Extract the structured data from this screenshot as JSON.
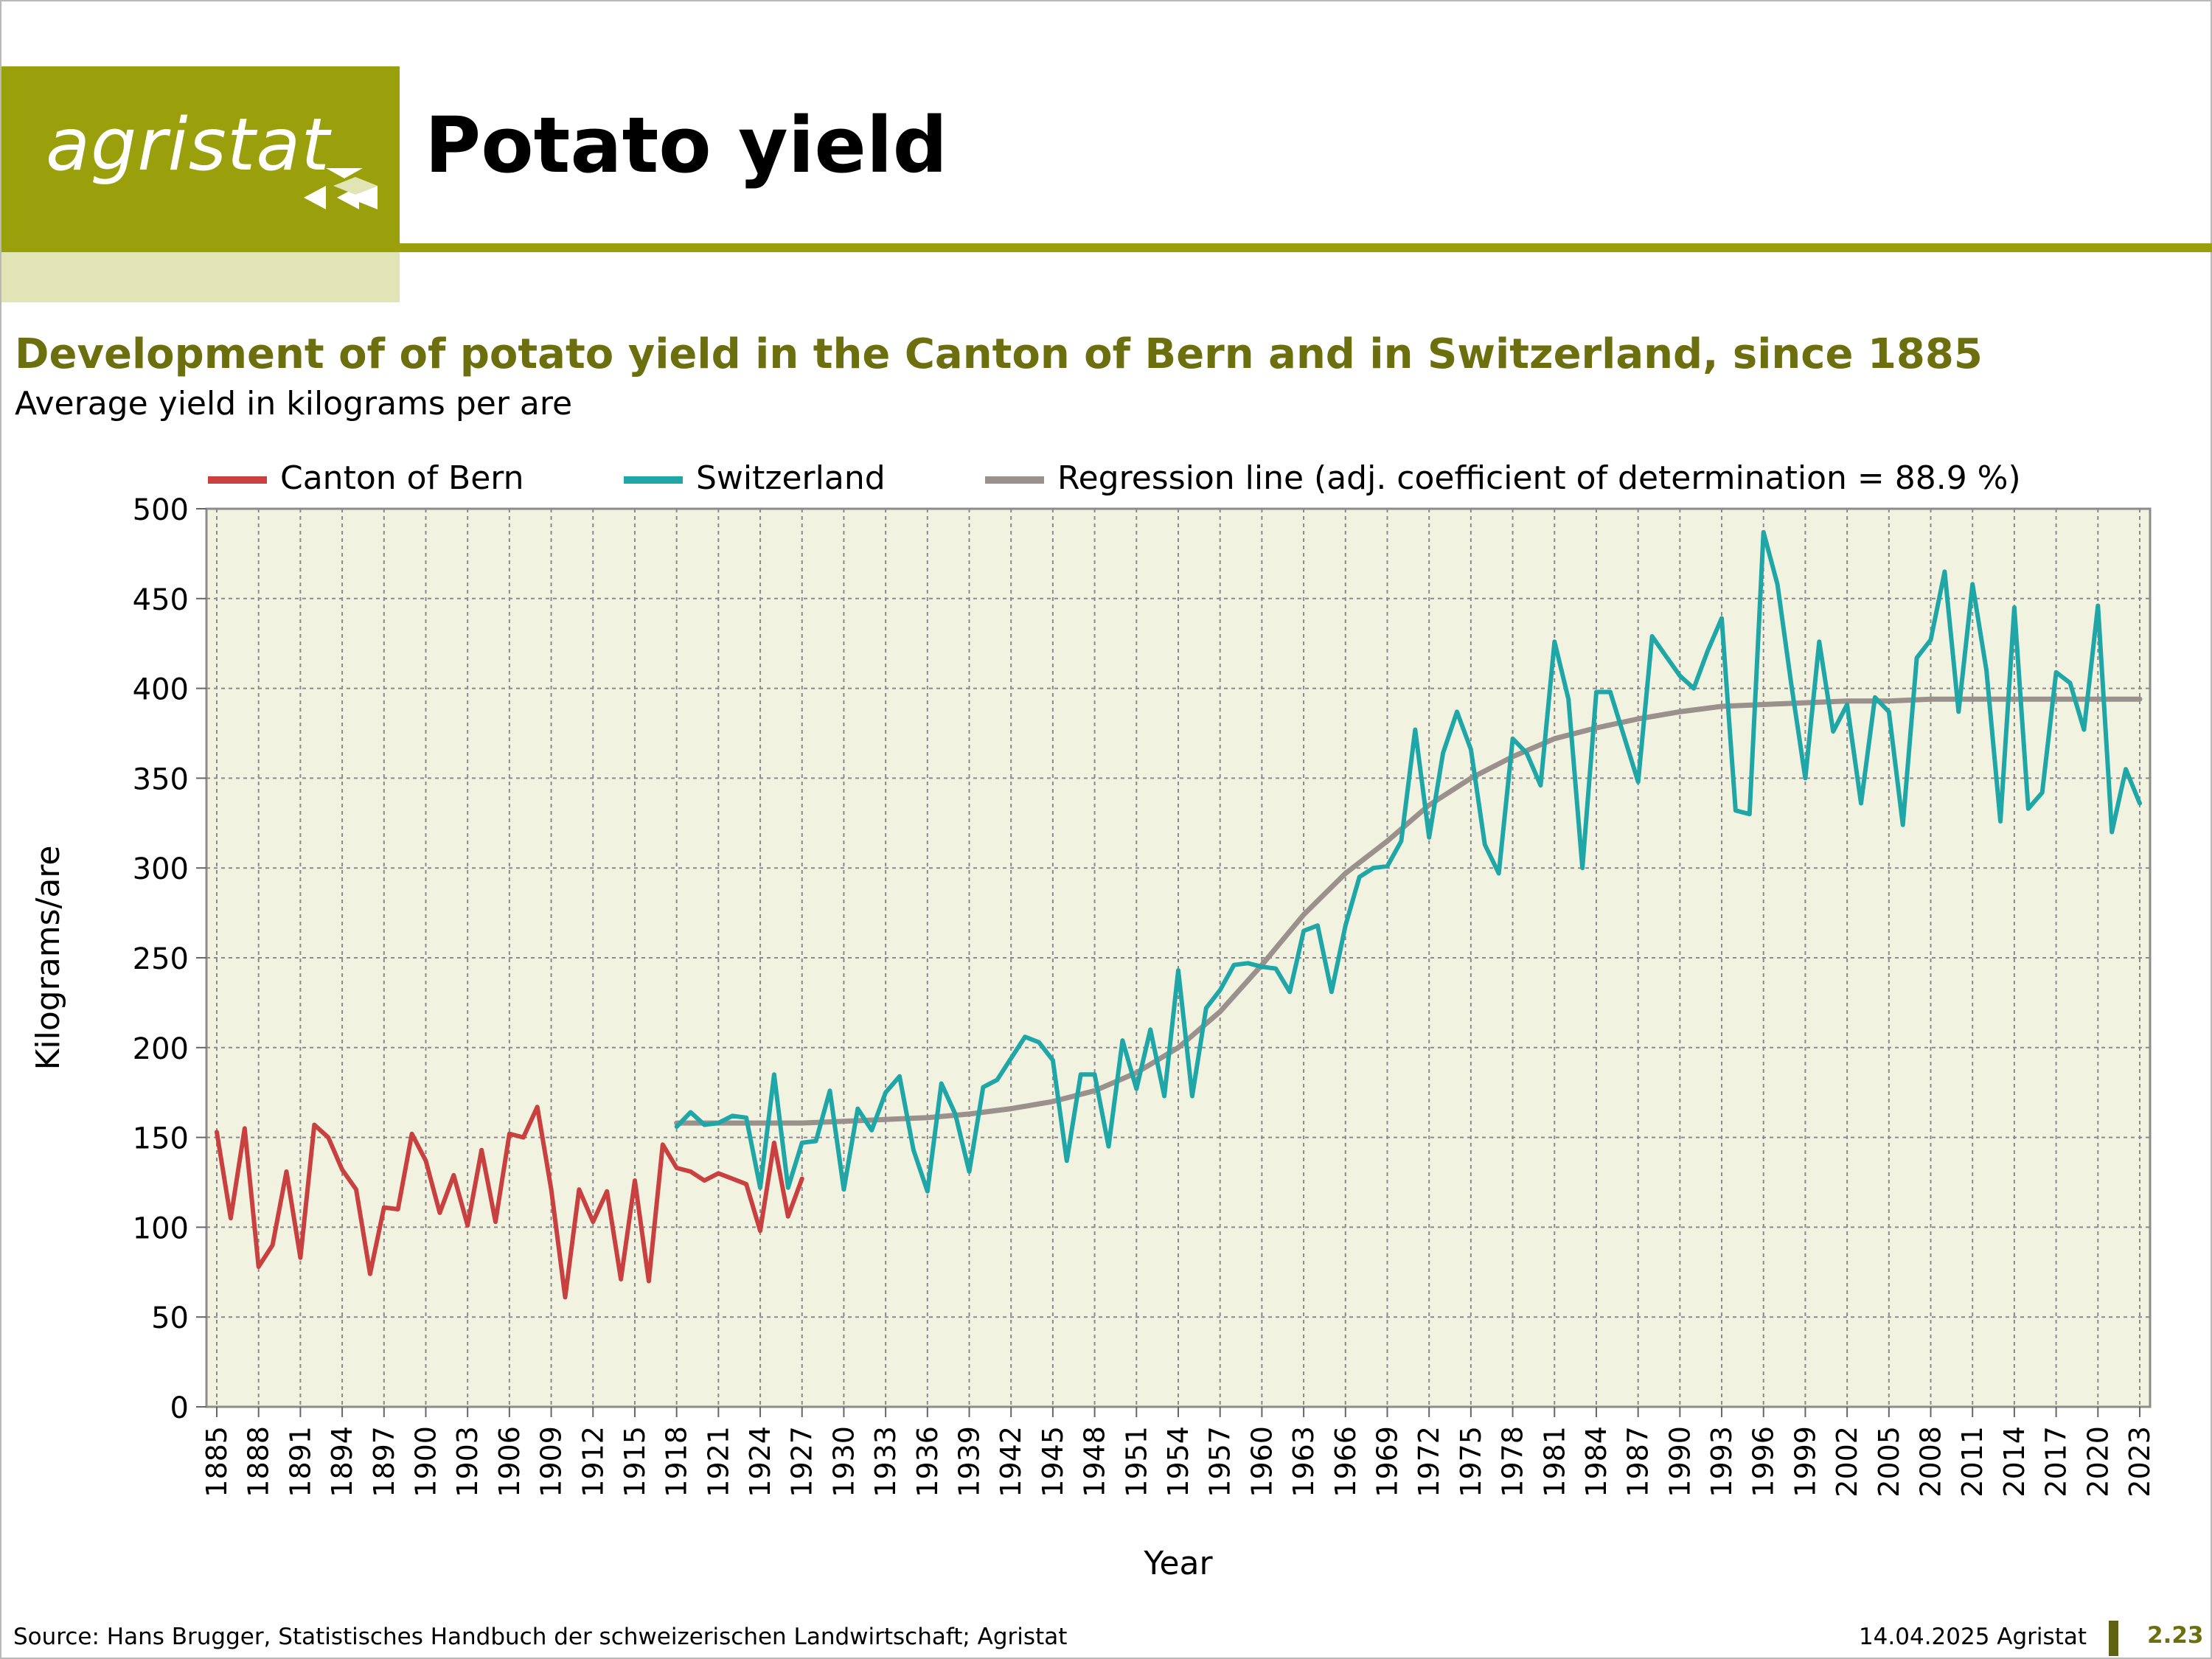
{
  "header": {
    "logo_text": "agristat",
    "title": "Potato yield"
  },
  "chart_data": {
    "type": "line",
    "title": "Development of of potato yield in the Canton of Bern and in Switzerland, since 1885",
    "subtitle": "Average yield in kilograms per are",
    "xlabel": "Year",
    "ylabel": "Kilograms/are",
    "ylim": [
      0,
      500
    ],
    "yticks": [
      0,
      50,
      100,
      150,
      200,
      250,
      300,
      350,
      400,
      450,
      500
    ],
    "xlim": [
      1885,
      2023
    ],
    "xticks": [
      1885,
      1888,
      1891,
      1894,
      1897,
      1900,
      1903,
      1906,
      1909,
      1912,
      1915,
      1918,
      1921,
      1924,
      1927,
      1930,
      1933,
      1936,
      1939,
      1942,
      1945,
      1948,
      1951,
      1954,
      1957,
      1960,
      1963,
      1966,
      1969,
      1972,
      1975,
      1978,
      1981,
      1984,
      1987,
      1990,
      1993,
      1996,
      1999,
      2002,
      2005,
      2008,
      2011,
      2014,
      2017,
      2020,
      2023
    ],
    "grid": true,
    "legend_position": "top",
    "series": [
      {
        "name": "Canton of Bern",
        "color": "#c8403f",
        "points": [
          [
            1885,
            153
          ],
          [
            1886,
            105
          ],
          [
            1887,
            155
          ],
          [
            1888,
            78
          ],
          [
            1889,
            90
          ],
          [
            1890,
            131
          ],
          [
            1891,
            83
          ],
          [
            1892,
            157
          ],
          [
            1893,
            150
          ],
          [
            1894,
            132
          ],
          [
            1895,
            121
          ],
          [
            1896,
            74
          ],
          [
            1897,
            111
          ],
          [
            1898,
            110
          ],
          [
            1899,
            152
          ],
          [
            1900,
            137
          ],
          [
            1901,
            108
          ],
          [
            1902,
            129
          ],
          [
            1903,
            101
          ],
          [
            1904,
            143
          ],
          [
            1905,
            103
          ],
          [
            1906,
            152
          ],
          [
            1907,
            150
          ],
          [
            1908,
            167
          ],
          [
            1909,
            121
          ],
          [
            1910,
            61
          ],
          [
            1911,
            121
          ],
          [
            1912,
            103
          ],
          [
            1913,
            120
          ],
          [
            1914,
            71
          ],
          [
            1915,
            126
          ],
          [
            1916,
            70
          ],
          [
            1917,
            146
          ],
          [
            1918,
            133
          ],
          [
            1919,
            131
          ],
          [
            1920,
            126
          ],
          [
            1921,
            130
          ],
          [
            1922,
            127
          ],
          [
            1923,
            124
          ],
          [
            1924,
            98
          ],
          [
            1925,
            147
          ],
          [
            1926,
            106
          ],
          [
            1927,
            127
          ]
        ]
      },
      {
        "name": "Switzerland",
        "color": "#1fa6a6",
        "points": [
          [
            1918,
            156
          ],
          [
            1919,
            164
          ],
          [
            1920,
            157
          ],
          [
            1921,
            158
          ],
          [
            1922,
            162
          ],
          [
            1923,
            161
          ],
          [
            1924,
            122
          ],
          [
            1925,
            185
          ],
          [
            1926,
            122
          ],
          [
            1927,
            147
          ],
          [
            1928,
            148
          ],
          [
            1929,
            176
          ],
          [
            1930,
            121
          ],
          [
            1931,
            166
          ],
          [
            1932,
            154
          ],
          [
            1933,
            175
          ],
          [
            1934,
            184
          ],
          [
            1935,
            143
          ],
          [
            1936,
            120
          ],
          [
            1937,
            180
          ],
          [
            1938,
            163
          ],
          [
            1939,
            131
          ],
          [
            1940,
            178
          ],
          [
            1941,
            182
          ],
          [
            1942,
            194
          ],
          [
            1943,
            206
          ],
          [
            1944,
            203
          ],
          [
            1945,
            193
          ],
          [
            1946,
            137
          ],
          [
            1947,
            185
          ],
          [
            1948,
            185
          ],
          [
            1949,
            145
          ],
          [
            1950,
            204
          ],
          [
            1951,
            177
          ],
          [
            1952,
            210
          ],
          [
            1953,
            173
          ],
          [
            1954,
            243
          ],
          [
            1955,
            173
          ],
          [
            1956,
            222
          ],
          [
            1957,
            232
          ],
          [
            1958,
            246
          ],
          [
            1959,
            247
          ],
          [
            1960,
            245
          ],
          [
            1961,
            244
          ],
          [
            1962,
            231
          ],
          [
            1963,
            265
          ],
          [
            1964,
            268
          ],
          [
            1965,
            231
          ],
          [
            1966,
            268
          ],
          [
            1967,
            295
          ],
          [
            1968,
            300
          ],
          [
            1969,
            301
          ],
          [
            1970,
            315
          ],
          [
            1971,
            377
          ],
          [
            1972,
            317
          ],
          [
            1973,
            364
          ],
          [
            1974,
            387
          ],
          [
            1975,
            366
          ],
          [
            1976,
            313
          ],
          [
            1977,
            297
          ],
          [
            1978,
            372
          ],
          [
            1979,
            364
          ],
          [
            1980,
            346
          ],
          [
            1981,
            426
          ],
          [
            1982,
            394
          ],
          [
            1983,
            300
          ],
          [
            1984,
            398
          ],
          [
            1985,
            398
          ],
          [
            1986,
            373
          ],
          [
            1987,
            348
          ],
          [
            1988,
            429
          ],
          [
            1989,
            418
          ],
          [
            1990,
            407
          ],
          [
            1991,
            400
          ],
          [
            1992,
            421
          ],
          [
            1993,
            439
          ],
          [
            1994,
            332
          ],
          [
            1995,
            330
          ],
          [
            1996,
            487
          ],
          [
            1997,
            458
          ],
          [
            1998,
            402
          ],
          [
            1999,
            350
          ],
          [
            2000,
            426
          ],
          [
            2001,
            376
          ],
          [
            2002,
            391
          ],
          [
            2003,
            336
          ],
          [
            2004,
            395
          ],
          [
            2005,
            387
          ],
          [
            2006,
            324
          ],
          [
            2007,
            417
          ],
          [
            2008,
            427
          ],
          [
            2009,
            465
          ],
          [
            2010,
            387
          ],
          [
            2011,
            458
          ],
          [
            2012,
            410
          ],
          [
            2013,
            326
          ],
          [
            2014,
            445
          ],
          [
            2015,
            333
          ],
          [
            2016,
            342
          ],
          [
            2017,
            409
          ],
          [
            2018,
            403
          ],
          [
            2019,
            377
          ],
          [
            2020,
            446
          ],
          [
            2021,
            320
          ],
          [
            2022,
            355
          ],
          [
            2023,
            336
          ]
        ]
      },
      {
        "name": "Regression line (adj. coefficient of determination = 88.9 %)",
        "color": "#9a918c",
        "points": [
          [
            1918,
            158
          ],
          [
            1921,
            158
          ],
          [
            1924,
            158
          ],
          [
            1927,
            158
          ],
          [
            1930,
            159
          ],
          [
            1933,
            160
          ],
          [
            1936,
            161
          ],
          [
            1939,
            163
          ],
          [
            1942,
            166
          ],
          [
            1945,
            170
          ],
          [
            1948,
            176
          ],
          [
            1951,
            186
          ],
          [
            1954,
            200
          ],
          [
            1957,
            220
          ],
          [
            1960,
            246
          ],
          [
            1963,
            274
          ],
          [
            1966,
            297
          ],
          [
            1969,
            315
          ],
          [
            1972,
            335
          ],
          [
            1975,
            350
          ],
          [
            1978,
            362
          ],
          [
            1981,
            372
          ],
          [
            1984,
            378
          ],
          [
            1987,
            383
          ],
          [
            1990,
            387
          ],
          [
            1993,
            390
          ],
          [
            1996,
            391
          ],
          [
            1999,
            392
          ],
          [
            2002,
            393
          ],
          [
            2005,
            393
          ],
          [
            2008,
            394
          ],
          [
            2011,
            394
          ],
          [
            2014,
            394
          ],
          [
            2017,
            394
          ],
          [
            2020,
            394
          ],
          [
            2023,
            394
          ]
        ]
      }
    ]
  },
  "footer": {
    "source": "Source: Hans Brugger, Statistisches Handbuch der schweizerischen Landwirtschaft; Agristat",
    "date": "14.04.2025 Agristat",
    "page": "2.23"
  }
}
